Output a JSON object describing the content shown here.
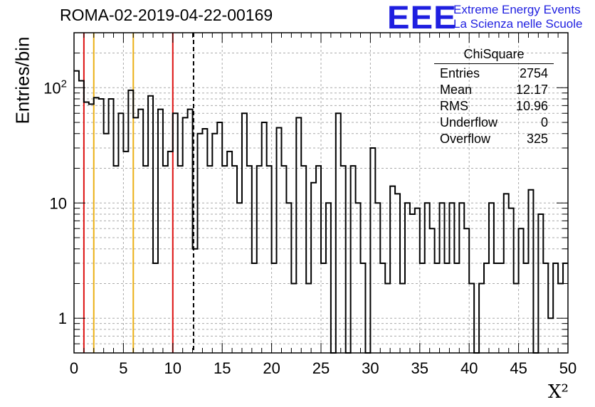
{
  "title": "ROMA-02-2019-04-22-00169",
  "logo": {
    "mark": "EEE",
    "line1": "Extreme Energy Events",
    "line2": "La Scienza nelle Scuole",
    "color": "#1f1fe0"
  },
  "stats": {
    "title": "ChiSquare",
    "rows": [
      {
        "label": "Entries",
        "value": "2754"
      },
      {
        "label": "Mean",
        "value": "12.17"
      },
      {
        "label": "RMS",
        "value": "10.96"
      },
      {
        "label": "Underflow",
        "value": "0"
      },
      {
        "label": "Overflow",
        "value": "325"
      }
    ]
  },
  "chart_data": {
    "type": "bar",
    "title": "ROMA-02-2019-04-22-00169",
    "xlabel": "X²",
    "ylabel": "Entries/bin",
    "xlim": [
      0,
      50
    ],
    "ylim": [
      0.5,
      300
    ],
    "yscale": "log",
    "grid": true,
    "bin_width": 0.5,
    "x_ticks": [
      0,
      5,
      10,
      15,
      20,
      25,
      30,
      35,
      40,
      45,
      50
    ],
    "y_ticks": [
      {
        "value": 1,
        "label": "1"
      },
      {
        "value": 10,
        "label": "10"
      },
      {
        "value": 100,
        "label": "10²"
      }
    ],
    "values": [
      140,
      115,
      75,
      72,
      82,
      80,
      40,
      80,
      21,
      60,
      28,
      95,
      55,
      65,
      21,
      85,
      3,
      65,
      21,
      28,
      60,
      21,
      55,
      65,
      4,
      40,
      44,
      21,
      40,
      50,
      21,
      28,
      21,
      10,
      60,
      21,
      3,
      21,
      50,
      21,
      3,
      45,
      21,
      10,
      2,
      55,
      21,
      2,
      15,
      21,
      3,
      10,
      0,
      60,
      21,
      0,
      21,
      10,
      3,
      0,
      30,
      10,
      3,
      2,
      14,
      12,
      2,
      10,
      8,
      9,
      3,
      10,
      6,
      3,
      10,
      3,
      10,
      3,
      10,
      6,
      2,
      0,
      2,
      3,
      10,
      3,
      3,
      12,
      9,
      2,
      6,
      3,
      13,
      0,
      8,
      3,
      1,
      3,
      2,
      3
    ],
    "vertical_lines": [
      {
        "x": 1,
        "color": "#dd1111",
        "style": "solid"
      },
      {
        "x": 2,
        "color": "#ebb015",
        "style": "solid"
      },
      {
        "x": 6,
        "color": "#ebb015",
        "style": "solid"
      },
      {
        "x": 10,
        "color": "#dd1111",
        "style": "solid"
      },
      {
        "x": 12.1,
        "color": "#000000",
        "style": "dashed"
      }
    ]
  }
}
